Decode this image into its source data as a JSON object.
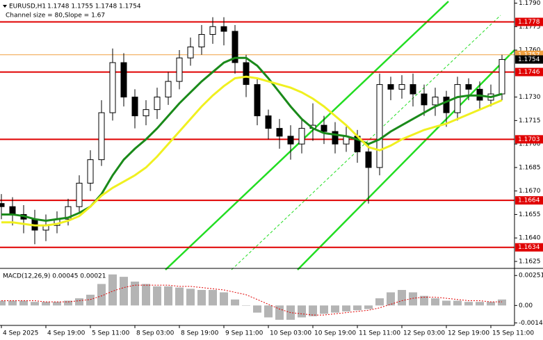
{
  "chart_data": {
    "type": "candlestick",
    "title": "EURUSD,H1",
    "subtitle": "1.1748 1.1755 1.1748 1.1754",
    "annotation": "Channel size = 80,Slope = 1.67",
    "x": [
      0,
      4,
      8,
      12,
      16,
      20,
      24,
      28,
      32,
      36,
      40,
      44,
      48,
      52,
      56,
      60,
      64,
      68,
      72,
      76,
      80,
      84,
      88,
      92,
      96,
      100,
      104,
      108,
      112,
      116,
      120,
      124,
      128,
      132,
      136,
      140,
      144,
      148,
      152,
      156,
      160,
      164,
      168,
      172,
      176,
      180
    ],
    "open": [
      1.1662,
      1.166,
      1.1655,
      1.1652,
      1.1645,
      1.1648,
      1.1652,
      1.166,
      1.1675,
      1.169,
      1.172,
      1.1752,
      1.173,
      1.1718,
      1.1722,
      1.173,
      1.174,
      1.1755,
      1.1762,
      1.177,
      1.1775,
      1.1772,
      1.1752,
      1.1738,
      1.1718,
      1.171,
      1.1705,
      1.17,
      1.171,
      1.1712,
      1.1708,
      1.17,
      1.1705,
      1.1695,
      1.1685,
      1.1738,
      1.1735,
      1.1738,
      1.1732,
      1.1725,
      1.173,
      1.172,
      1.1738,
      1.1735,
      1.1728,
      1.1732
    ],
    "high": [
      1.1668,
      1.1666,
      1.1661,
      1.1658,
      1.1655,
      1.1657,
      1.1665,
      1.168,
      1.1696,
      1.1728,
      1.1761,
      1.1758,
      1.1735,
      1.1728,
      1.1736,
      1.1746,
      1.176,
      1.1768,
      1.1776,
      1.1781,
      1.1781,
      1.1776,
      1.1757,
      1.1742,
      1.1722,
      1.1716,
      1.1712,
      1.1716,
      1.1726,
      1.1718,
      1.1714,
      1.1711,
      1.1709,
      1.17,
      1.1745,
      1.1743,
      1.1744,
      1.1745,
      1.1738,
      1.1736,
      1.1734,
      1.1743,
      1.1742,
      1.174,
      1.1738,
      1.1757
    ],
    "low": [
      1.1652,
      1.1648,
      1.1643,
      1.1636,
      1.1638,
      1.1643,
      1.1648,
      1.1656,
      1.167,
      1.1686,
      1.1715,
      1.1724,
      1.171,
      1.1712,
      1.1716,
      1.1725,
      1.1735,
      1.175,
      1.1757,
      1.1764,
      1.1763,
      1.1745,
      1.173,
      1.1712,
      1.1703,
      1.1697,
      1.169,
      1.1694,
      1.1702,
      1.17,
      1.1694,
      1.1695,
      1.1688,
      1.1662,
      1.168,
      1.1728,
      1.1729,
      1.1724,
      1.1718,
      1.1718,
      1.1711,
      1.1715,
      1.1728,
      1.1722,
      1.1724,
      1.1728
    ],
    "close": [
      1.166,
      1.1655,
      1.1652,
      1.1645,
      1.1648,
      1.1652,
      1.166,
      1.1675,
      1.169,
      1.172,
      1.1752,
      1.173,
      1.1718,
      1.1722,
      1.173,
      1.174,
      1.1755,
      1.1762,
      1.177,
      1.1775,
      1.1772,
      1.1752,
      1.1738,
      1.1718,
      1.171,
      1.1705,
      1.17,
      1.171,
      1.1712,
      1.1708,
      1.17,
      1.1705,
      1.1695,
      1.1685,
      1.1738,
      1.1735,
      1.1738,
      1.1732,
      1.1725,
      1.173,
      1.172,
      1.1738,
      1.1735,
      1.1728,
      1.1732,
      1.1754
    ],
    "series": [
      {
        "color": "#1a8a1a",
        "values": [
          1.1655,
          1.1655,
          1.1654,
          1.1652,
          1.1651,
          1.1652,
          1.1653,
          1.1656,
          1.166,
          1.1668,
          1.168,
          1.169,
          1.1697,
          1.1703,
          1.171,
          1.1718,
          1.1726,
          1.1733,
          1.174,
          1.1746,
          1.1752,
          1.1755,
          1.1755,
          1.175,
          1.1742,
          1.1733,
          1.1724,
          1.1716,
          1.171,
          1.1707,
          1.1706,
          1.1705,
          1.1703,
          1.17,
          1.1703,
          1.1708,
          1.1712,
          1.1716,
          1.172,
          1.1724,
          1.1727,
          1.173,
          1.1731,
          1.1731,
          1.173,
          1.1732
        ]
      },
      {
        "color": "#f0f020",
        "values": [
          1.165,
          1.165,
          1.1649,
          1.1648,
          1.1648,
          1.1649,
          1.1651,
          1.1654,
          1.166,
          1.1667,
          1.1672,
          1.1676,
          1.168,
          1.1685,
          1.1692,
          1.17,
          1.1708,
          1.1716,
          1.1724,
          1.1731,
          1.1737,
          1.1742,
          1.1743,
          1.1742,
          1.174,
          1.1738,
          1.1736,
          1.1733,
          1.1729,
          1.1724,
          1.1718,
          1.1712,
          1.1705,
          1.1698,
          1.1696,
          1.1699,
          1.1703,
          1.1706,
          1.1709,
          1.1711,
          1.1713,
          1.1716,
          1.1719,
          1.1722,
          1.1725,
          1.1728
        ]
      }
    ],
    "levels": {
      "color": "#e00000",
      "values": [
        1.1778,
        1.1746,
        1.1703,
        1.1664,
        1.1634
      ]
    },
    "markers": [
      {
        "value": 1.1757,
        "color": "#f0a040"
      },
      {
        "value": 1.1754,
        "color": "#000000"
      }
    ],
    "xlim": [
      -0.5,
      184.5
    ],
    "xticks": [
      {
        "value": 0,
        "label": "4 Sep 2025"
      },
      {
        "value": 16,
        "label": "4 Sep 19:00"
      },
      {
        "value": 32,
        "label": "5 Sep 11:00"
      },
      {
        "value": 48,
        "label": "8 Sep 03:00"
      },
      {
        "value": 64,
        "label": "8 Sep 19:00"
      },
      {
        "value": 80,
        "label": "9 Sep 11:00"
      },
      {
        "value": 96,
        "label": "10 Sep 03:00"
      },
      {
        "value": 112,
        "label": "10 Sep 19:00"
      },
      {
        "value": 128,
        "label": "11 Sep 11:00"
      },
      {
        "value": 144,
        "label": "12 Sep 03:00"
      },
      {
        "value": 160,
        "label": "12 Sep 19:00"
      },
      {
        "value": 176,
        "label": "15 Sep 11:00"
      }
    ],
    "ylim": [
      1.1621,
      1.1792
    ],
    "yticks": [
      {
        "value": 1.179,
        "label": "1.1790"
      },
      1.1775,
      {
        "value": 1.176,
        "label": "1.1760"
      },
      {
        "value": 1.173,
        "label": "1.1730"
      },
      1.1715,
      {
        "value": 1.17,
        "label": "1.1700"
      },
      1.1685,
      {
        "value": 1.167,
        "label": "1.1670"
      },
      1.1655,
      {
        "value": 1.164,
        "label": "1.1640"
      },
      1.1625
    ],
    "macd": {
      "label": "MACD(12,26,9) 0.00045 0.00021",
      "color": "#b4b4b4",
      "signal_color": "#e00000",
      "values": [
        0.0004,
        0.0004,
        0.0004,
        0.0003,
        0.0003,
        0.0003,
        0.0004,
        0.0006,
        0.0009,
        0.0018,
        0.0026,
        0.0024,
        0.002,
        0.0018,
        0.0016,
        0.0016,
        0.0015,
        0.0014,
        0.0013,
        0.0013,
        0.0011,
        0.0005,
        0,
        -0.0006,
        -0.001,
        -0.0012,
        -0.0012,
        -0.001,
        -0.0009,
        -0.0007,
        -0.0006,
        -0.0005,
        -0.0004,
        -0.0003,
        0.0006,
        0.0011,
        0.0013,
        0.0011,
        0.0008,
        0.0006,
        0.0004,
        0.0004,
        0.0003,
        0.0003,
        0.0003,
        0.0005
      ],
      "signal": [
        0.0004,
        0.0004,
        0.0004,
        0.0004,
        0.0003,
        0.0003,
        0.0003,
        0.0004,
        0.0005,
        0.0008,
        0.0012,
        0.0015,
        0.0017,
        0.0017,
        0.0017,
        0.0017,
        0.0016,
        0.0016,
        0.0015,
        0.0014,
        0.0013,
        0.0011,
        0.0009,
        0.0005,
        0.0001,
        -0.0003,
        -0.0006,
        -0.0007,
        -0.0008,
        -0.0008,
        -0.0007,
        -0.0006,
        -0.0005,
        -0.0004,
        -0.0002,
        0.0001,
        0.0004,
        0.0006,
        0.0007,
        0.0007,
        0.0006,
        0.0005,
        0.0004,
        0.0004,
        0.0003,
        0.0003
      ],
      "ylim": [
        -0.00167,
        0.00299
      ],
      "yticks": [
        0.00251,
        {
          "value": 0,
          "label": "0.00"
        },
        -0.00146
      ]
    }
  }
}
